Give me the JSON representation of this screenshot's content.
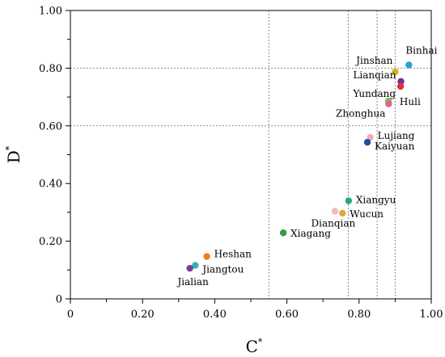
{
  "chart_data": {
    "type": "scatter",
    "xlabel": "C*",
    "ylabel": "D*",
    "xlim": [
      0,
      1.0
    ],
    "ylim": [
      0,
      1.0
    ],
    "x_tick_values": [
      0,
      0.2,
      0.4,
      0.6,
      0.8,
      1.0
    ],
    "x_tick_labels": [
      "0",
      "0.20",
      "0.40",
      "0.60",
      "0.80",
      "1.00"
    ],
    "y_tick_values": [
      0,
      0.2,
      0.4,
      0.6,
      0.8,
      1.0
    ],
    "y_tick_labels": [
      "0",
      "0.20",
      "0.40",
      "0.60",
      "0.80",
      "1.00"
    ],
    "minor_tick_step": 0.1,
    "grid": true,
    "reference_lines_x": [
      0.55,
      0.77,
      0.85,
      0.9
    ],
    "reference_lines_y": [
      0.6,
      0.8
    ],
    "points": [
      {
        "label": "Binhai",
        "x": 0.938,
        "y": 0.811,
        "color": "#2a9fd6"
      },
      {
        "label": "Jinshan",
        "x": 0.9,
        "y": 0.787,
        "color": "#d4b021"
      },
      {
        "label": "Lianqian",
        "x": 0.916,
        "y": 0.754,
        "color": "#7b2d8b"
      },
      {
        "label": "Yundang",
        "x": 0.915,
        "y": 0.737,
        "color": "#e03030"
      },
      {
        "label": "Huli",
        "x": 0.881,
        "y": 0.686,
        "color": "#7cc242"
      },
      {
        "label": "Zhonghua",
        "x": 0.882,
        "y": 0.676,
        "color": "#e8609a"
      },
      {
        "label": "Lujiang",
        "x": 0.831,
        "y": 0.56,
        "color": "#f6a8bf"
      },
      {
        "label": "Kaiyuan",
        "x": 0.823,
        "y": 0.543,
        "color": "#1f4e9c"
      },
      {
        "label": "Xiangyu",
        "x": 0.771,
        "y": 0.34,
        "color": "#2aa87a"
      },
      {
        "label": "Wucun",
        "x": 0.754,
        "y": 0.297,
        "color": "#e8a33a"
      },
      {
        "label": "Dianqian",
        "x": 0.733,
        "y": 0.304,
        "color": "#f4b8b8"
      },
      {
        "label": "Xiagang",
        "x": 0.59,
        "y": 0.229,
        "color": "#2e9e3e"
      },
      {
        "label": "Heshan",
        "x": 0.378,
        "y": 0.147,
        "color": "#f07a25"
      },
      {
        "label": "Jiangtou",
        "x": 0.346,
        "y": 0.116,
        "color": "#2ab5b0"
      },
      {
        "label": "Jialian",
        "x": 0.331,
        "y": 0.106,
        "color": "#7b3c91"
      }
    ]
  }
}
